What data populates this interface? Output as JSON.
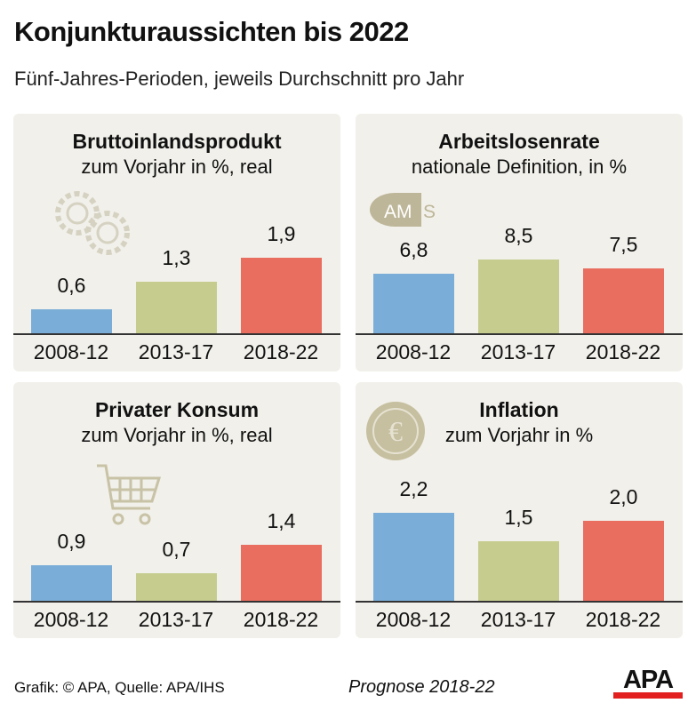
{
  "title": "Konjunkturaussichten bis 2022",
  "subtitle": "Fünf-Jahres-Perioden, jeweils Durchschnitt pro Jahr",
  "colors": [
    "#7aaed8",
    "#c5cc8e",
    "#e96e60"
  ],
  "chart_data": [
    {
      "type": "bar",
      "title": "Bruttoinlandsprodukt",
      "subtitle": "zum Vorjahr in %, real",
      "categories": [
        "2008-12",
        "2013-17",
        "2018-22"
      ],
      "values": [
        0.6,
        1.3,
        1.9
      ],
      "labels": [
        "0,6",
        "1,3",
        "1,9"
      ],
      "icon": "gears-icon"
    },
    {
      "type": "bar",
      "title": "Arbeitslosenrate",
      "subtitle": "nationale Definition, in %",
      "categories": [
        "2008-12",
        "2013-17",
        "2018-22"
      ],
      "values": [
        6.8,
        8.5,
        7.5
      ],
      "labels": [
        "6,8",
        "8,5",
        "7,5"
      ],
      "icon": "ams-logo",
      "logo_text": "AMS"
    },
    {
      "type": "bar",
      "title": "Privater Konsum",
      "subtitle": "zum Vorjahr in %, real",
      "categories": [
        "2008-12",
        "2013-17",
        "2018-22"
      ],
      "values": [
        0.9,
        0.7,
        1.4
      ],
      "labels": [
        "0,9",
        "0,7",
        "1,4"
      ],
      "icon": "shopping-cart-icon"
    },
    {
      "type": "bar",
      "title": "Inflation",
      "subtitle": "zum Vorjahr in %",
      "categories": [
        "2008-12",
        "2013-17",
        "2018-22"
      ],
      "values": [
        2.2,
        1.5,
        2.0
      ],
      "labels": [
        "2,2",
        "1,5",
        "2,0"
      ],
      "icon": "euro-coin-icon"
    }
  ],
  "footer": {
    "source": "Grafik: © APA, Quelle: APA/IHS",
    "note": "Prognose 2018-22",
    "logo": "APA"
  }
}
